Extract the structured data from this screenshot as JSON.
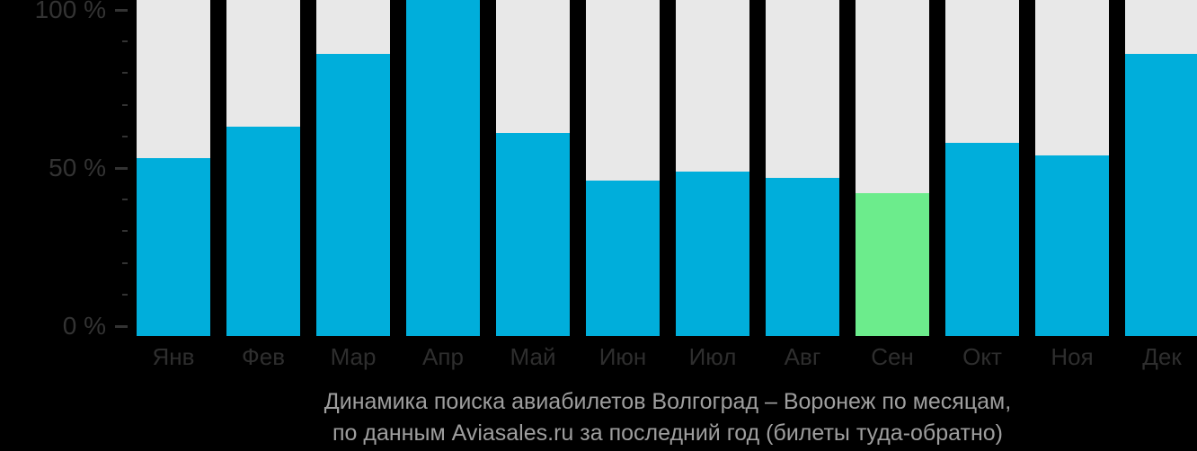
{
  "chart_data": {
    "type": "bar",
    "categories": [
      "Янв",
      "Фев",
      "Мар",
      "Апр",
      "Май",
      "Июн",
      "Июл",
      "Авг",
      "Сен",
      "Окт",
      "Ноя",
      "Дек"
    ],
    "values": [
      53,
      63,
      86,
      100,
      61,
      46,
      49,
      47,
      42,
      58,
      54,
      86
    ],
    "highlight_index": 8,
    "title": "Динамика поиска авиабилетов Волгоград – Воронеж по месяцам,",
    "subtitle": "по данным Aviasales.ru за последний год (билеты туда-обратно)",
    "ylabel": "",
    "xlabel": "",
    "ylim": [
      0,
      100
    ],
    "y_ticks": [
      {
        "value": 100,
        "label": "100 %"
      },
      {
        "value": 50,
        "label": "50 %"
      },
      {
        "value": 0,
        "label": "0 %"
      }
    ],
    "y_minor_step": 10,
    "legend": "none",
    "grid": "off"
  },
  "colors": {
    "background": "#000000",
    "bar": "#00AEDB",
    "bar_highlight": "#6CEC8C",
    "column_track": "#E8E8E8",
    "axis_text": "#333333",
    "caption_text": "#9E9E9E"
  }
}
